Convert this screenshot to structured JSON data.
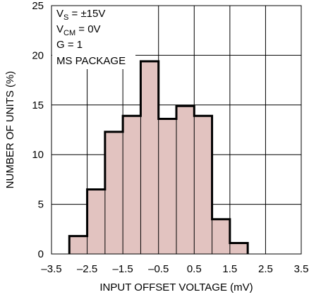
{
  "chart_data": {
    "type": "bar",
    "title": "",
    "xlabel": "INPUT OFFSET VOLTAGE (mV)",
    "ylabel": "NUMBER OF UNITS (%)",
    "xlim": [
      -3.5,
      3.5
    ],
    "ylim": [
      0,
      25
    ],
    "xticks": [
      "–3.5",
      "–2.5",
      "–1.5",
      "–0.5",
      "0.5",
      "1.5",
      "2.5",
      "3.5"
    ],
    "yticks": [
      "0",
      "5",
      "10",
      "15",
      "20",
      "25"
    ],
    "bin_width": 0.5,
    "bin_starts": [
      -3.0,
      -2.5,
      -2.0,
      -1.5,
      -1.0,
      -0.5,
      0.0,
      0.5,
      1.0,
      1.5
    ],
    "values": [
      1.8,
      6.5,
      12.3,
      13.9,
      19.4,
      13.6,
      14.9,
      13.9,
      3.5,
      1.1
    ],
    "grid": true,
    "bar_color": "#e2c3c0",
    "annotations": [
      "S",
      "CM"
    ],
    "annotation_lines": [
      {
        "main": "V",
        "sub": "S",
        "rest": " = ±15V"
      },
      {
        "main": "V",
        "sub": "CM",
        "rest": " = 0V"
      },
      {
        "main": "G = 1",
        "sub": "",
        "rest": ""
      },
      {
        "main": "MS PACKAGE",
        "sub": "",
        "rest": ""
      }
    ]
  }
}
